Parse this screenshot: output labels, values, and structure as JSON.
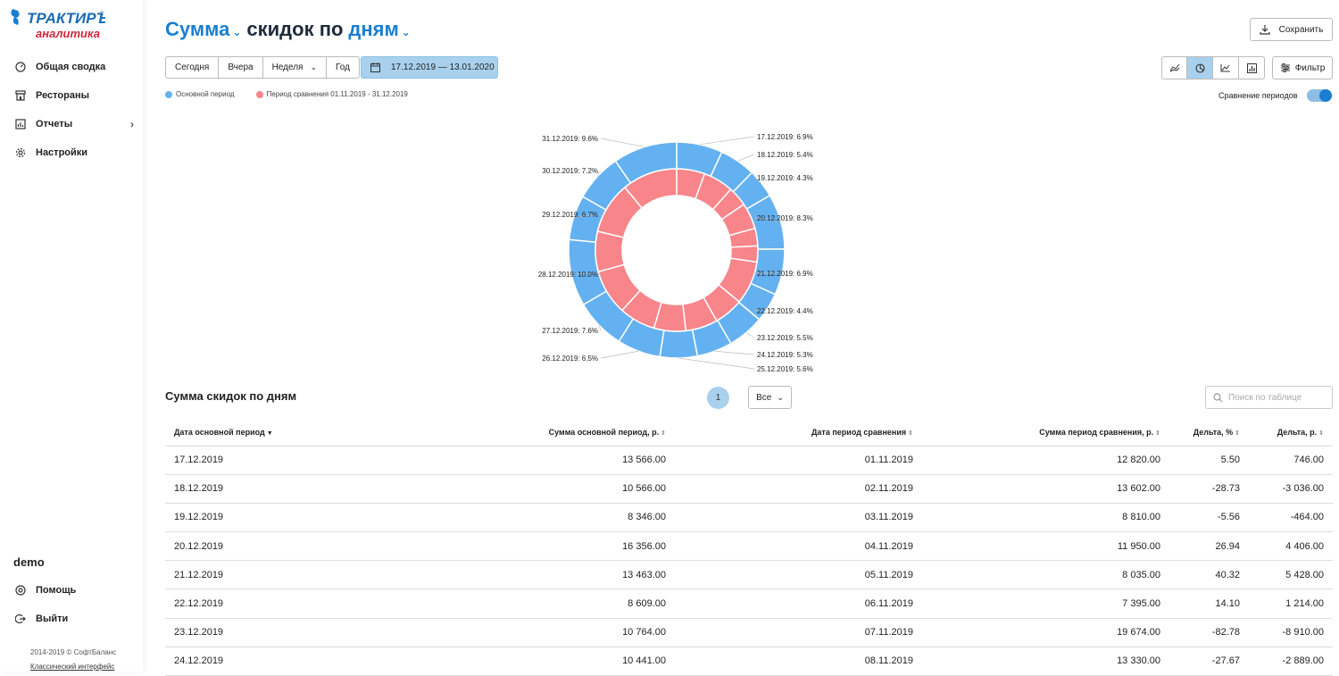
{
  "app": {
    "logo_line1": "ТРАКТИРЪ",
    "logo_line2": "аналитика",
    "logo_mark": "®"
  },
  "sidebar": {
    "items": [
      {
        "label": "Общая сводка",
        "icon": "gauge-icon"
      },
      {
        "label": "Рестораны",
        "icon": "store-icon"
      },
      {
        "label": "Отчеты",
        "icon": "report-icon"
      },
      {
        "label": "Настройки",
        "icon": "gear-icon"
      }
    ],
    "user": "demo",
    "help_label": "Помощь",
    "logout_label": "Выйти",
    "copyright": "2014-2019 © СофтБаланс",
    "classic_link": "Классический интерфейс"
  },
  "header": {
    "title_part1": "Сумма",
    "title_part2": "скидок по",
    "title_part3": "дням",
    "save_label": "Сохранить"
  },
  "toolbar": {
    "periods": [
      "Сегодня",
      "Вчера",
      "Неделя",
      "Год"
    ],
    "date_range": "17.12.2019 — 13.01.2020",
    "filter_label": "Фильтр",
    "views": [
      "line-chart-icon",
      "pie-chart-icon",
      "area-chart-icon",
      "bar-chart-icon"
    ],
    "active_view": "pie-chart-icon"
  },
  "legend": {
    "main": "Основной период",
    "compare": "Период сравнения 01.11.2019 - 31.12.2019",
    "compare_toggle_label": "Сравнение периодов",
    "compare_enabled": true
  },
  "colors": {
    "main": "#64b1f1",
    "compare": "#f7858a",
    "accent": "#1a7fd0"
  },
  "chart_data": {
    "type": "pie",
    "variant": "nested-donut",
    "series": [
      {
        "name": "Основной период",
        "labels": [
          "17.12.2019: 6.9%",
          "18.12.2019: 5.4%",
          "19.12.2019: 4.3%",
          "20.12.2019: 8.3%",
          "21.12.2019: 6.9%",
          "22.12.2019: 4.4%",
          "23.12.2019: 5.5%",
          "24.12.2019: 5.3%",
          "25.12.2019: 5.6%",
          "26.12.2019: 6.5%",
          "27.12.2019: 7.6%",
          "28.12.2019: 10.0%",
          "29.12.2019: 6.7%",
          "30.12.2019: 7.2%",
          "31.12.2019: 9.6%"
        ],
        "values": [
          6.9,
          5.4,
          4.3,
          8.3,
          6.9,
          4.4,
          5.5,
          5.3,
          5.6,
          6.5,
          7.6,
          10.0,
          6.7,
          7.2,
          9.6
        ]
      },
      {
        "name": "Период сравнения 01.11.2019 - 31.12.2019",
        "values": [
          5.6,
          6.0,
          3.9,
          5.2,
          3.5,
          3.2,
          8.6,
          5.8,
          6.4,
          6.3,
          7.2,
          9.0,
          8.0,
          10.3,
          11.0
        ]
      }
    ]
  },
  "table": {
    "title": "Сумма скидок по дням",
    "page": "1",
    "page_size": "Все",
    "search_placeholder": "Поиск по таблице",
    "columns": [
      "Дата основной период",
      "Сумма основной период, р.",
      "Дата период сравнения",
      "Сумма период сравнения, р.",
      "Дельта, %",
      "Дельта, р."
    ],
    "rows": [
      [
        "17.12.2019",
        "13 566.00",
        "01.11.2019",
        "12 820.00",
        "5.50",
        "746.00"
      ],
      [
        "18.12.2019",
        "10 566.00",
        "02.11.2019",
        "13 602.00",
        "-28.73",
        "-3 036.00"
      ],
      [
        "19.12.2019",
        "8 346.00",
        "03.11.2019",
        "8 810.00",
        "-5.56",
        "-464.00"
      ],
      [
        "20.12.2019",
        "16 356.00",
        "04.11.2019",
        "11 950.00",
        "26.94",
        "4 406.00"
      ],
      [
        "21.12.2019",
        "13 463.00",
        "05.11.2019",
        "8 035.00",
        "40.32",
        "5 428.00"
      ],
      [
        "22.12.2019",
        "8 609.00",
        "06.11.2019",
        "7 395.00",
        "14.10",
        "1 214.00"
      ],
      [
        "23.12.2019",
        "10 764.00",
        "07.11.2019",
        "19 674.00",
        "-82.78",
        "-8 910.00"
      ],
      [
        "24.12.2019",
        "10 441.00",
        "08.11.2019",
        "13 330.00",
        "-27.67",
        "-2 889.00"
      ]
    ]
  }
}
